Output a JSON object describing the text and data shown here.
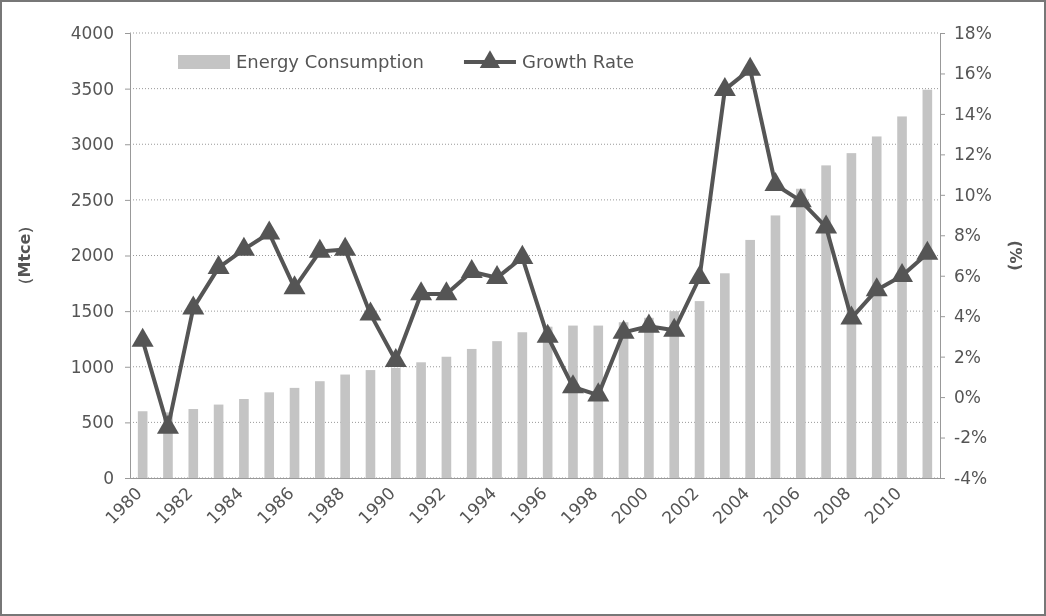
{
  "chart_data": {
    "type": "bar",
    "categories": [
      "1980",
      null,
      "1982",
      null,
      "1984",
      null,
      "1986",
      null,
      "1988",
      null,
      "1990",
      null,
      "1992",
      null,
      "1994",
      null,
      "1996",
      null,
      "1998",
      null,
      "2000",
      null,
      "2002",
      null,
      "2004",
      null,
      "2006",
      null,
      "2008",
      null,
      "2010",
      null
    ],
    "ylabel": "（Mtce）",
    "y2label": "(%)",
    "ylim": [
      0,
      4000
    ],
    "yticks": [
      0,
      500,
      1000,
      1500,
      2000,
      2500,
      3000,
      3500,
      4000
    ],
    "y2lim": [
      -4,
      18
    ],
    "y2ticks": [
      {
        "value": -4,
        "label": "-4%"
      },
      {
        "value": -2,
        "label": "-2%"
      },
      {
        "value": 0,
        "label": "0%"
      },
      {
        "value": 2,
        "label": "2%"
      },
      {
        "value": 4,
        "label": "4%"
      },
      {
        "value": 6,
        "label": "6%"
      },
      {
        "value": 8,
        "label": "8%"
      },
      {
        "value": 10,
        "label": "10%"
      },
      {
        "value": 12,
        "label": "12%"
      },
      {
        "value": 14,
        "label": "14%"
      },
      {
        "value": 16,
        "label": "16%"
      },
      {
        "value": 18,
        "label": "18%"
      }
    ],
    "grid": "y",
    "legend": "top left",
    "marker": "triangle",
    "line_style": "solid",
    "series": [
      {
        "name": "Energy Consumption",
        "color": "#c4c4c4",
        "values": [
          600,
          590,
          620,
          660,
          710,
          770,
          810,
          870,
          930,
          970,
          990,
          1040,
          1090,
          1160,
          1230,
          1310,
          1360,
          1370,
          1370,
          1400,
          1440,
          1500,
          1590,
          1840,
          2140,
          2360,
          2600,
          2810,
          2920,
          3070,
          3250,
          3490
        ]
      },
      {
        "name": "Growth Rate",
        "type": "line",
        "axis": "y2",
        "color": "#555555",
        "values": [
          2.8,
          -1.5,
          4.4,
          6.4,
          7.3,
          8.1,
          5.4,
          7.2,
          7.3,
          4.1,
          1.8,
          5.1,
          5.1,
          6.2,
          5.9,
          6.9,
          3.0,
          0.5,
          0.1,
          3.2,
          3.5,
          3.3,
          5.9,
          15.2,
          16.2,
          10.5,
          9.7,
          8.4,
          3.9,
          5.3,
          6.0,
          7.1
        ]
      }
    ]
  }
}
